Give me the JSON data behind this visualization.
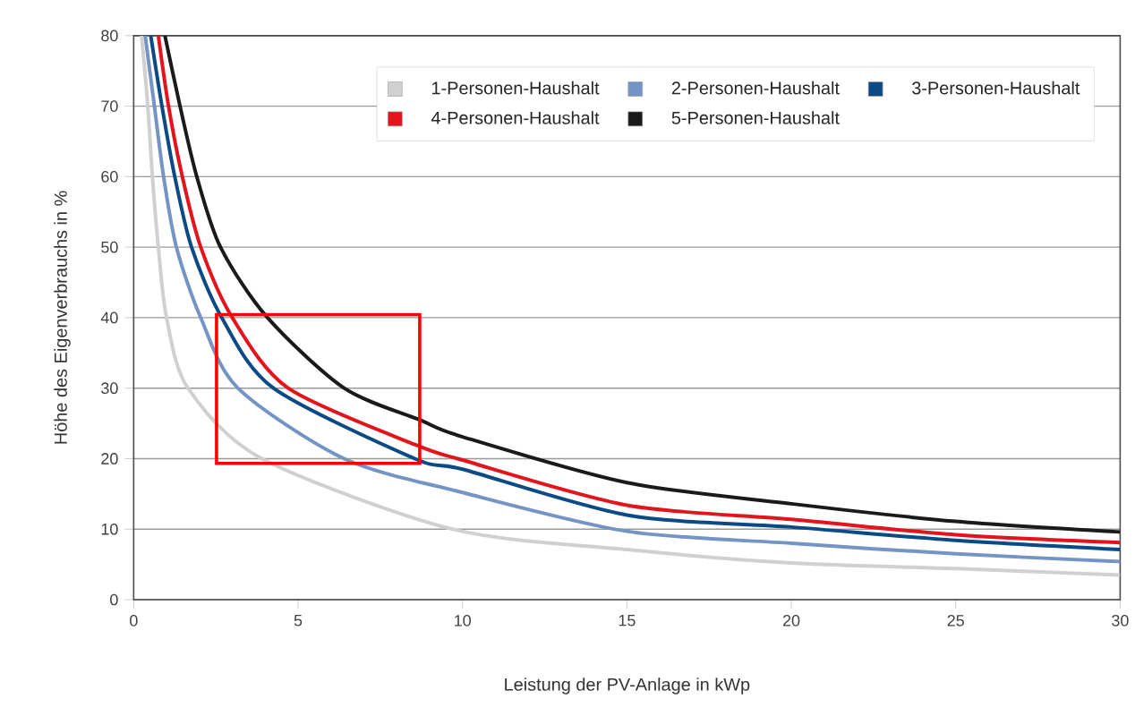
{
  "chart_data": {
    "type": "line",
    "xlabel": "Leistung der PV-Anlage in kWp",
    "ylabel": "Höhe des Eigenverbrauchs in %",
    "xlim": [
      0,
      30
    ],
    "ylim": [
      0,
      80
    ],
    "xticks": [
      0,
      5,
      10,
      15,
      20,
      25,
      30
    ],
    "yticks": [
      0,
      10,
      20,
      30,
      40,
      50,
      60,
      70,
      80
    ],
    "grid": "y",
    "legend": "top right",
    "marker": "none",
    "line_style": "solid",
    "series": [
      {
        "name": "1-Personen-Haushalt",
        "color": "#d0d0d0",
        "x": [
          0.24,
          0.43,
          0.57,
          0.75,
          1.0,
          1.65,
          3.9,
          9.7,
          15,
          20,
          25,
          30
        ],
        "values": [
          80,
          70,
          60,
          50,
          40,
          30,
          20,
          10,
          7.1,
          5.2,
          4.4,
          3.5
        ]
      },
      {
        "name": "2-Personen-Haushalt",
        "color": "#7394c4",
        "x": [
          0.35,
          0.63,
          0.91,
          1.3,
          2.04,
          3.17,
          6.4,
          10,
          15,
          20,
          25,
          30
        ],
        "values": [
          80,
          70,
          60,
          50,
          40,
          30,
          20,
          15.2,
          9.7,
          8.0,
          6.5,
          5.4
        ]
      },
      {
        "name": "3-Personen-Haushalt",
        "color": "#0b4a85",
        "x": [
          0.52,
          0.86,
          1.25,
          1.76,
          2.68,
          4.25,
          8.55,
          10,
          15,
          20,
          25,
          30
        ],
        "values": [
          80,
          70,
          60,
          50,
          40,
          30,
          20,
          18.5,
          12.0,
          10.3,
          8.4,
          7.1
        ]
      },
      {
        "name": "4-Personen-Haushalt",
        "color": "#e3141b",
        "x": [
          0.75,
          1.06,
          1.48,
          2.04,
          3.0,
          4.7,
          8.55,
          10,
          15,
          20,
          25,
          30
        ],
        "values": [
          80,
          70,
          60,
          50,
          40,
          30,
          22,
          19.8,
          13.4,
          11.4,
          9.2,
          8.1
        ]
      },
      {
        "name": "5-Personen-Haushalt",
        "color": "#1a1a1a",
        "x": [
          0.95,
          1.41,
          1.92,
          2.64,
          4.07,
          6.4,
          8.7,
          10,
          15,
          20,
          25,
          30
        ],
        "values": [
          80,
          70,
          60,
          50,
          40,
          30,
          25.5,
          23.1,
          16.6,
          13.6,
          11.1,
          9.6
        ]
      }
    ]
  }
}
